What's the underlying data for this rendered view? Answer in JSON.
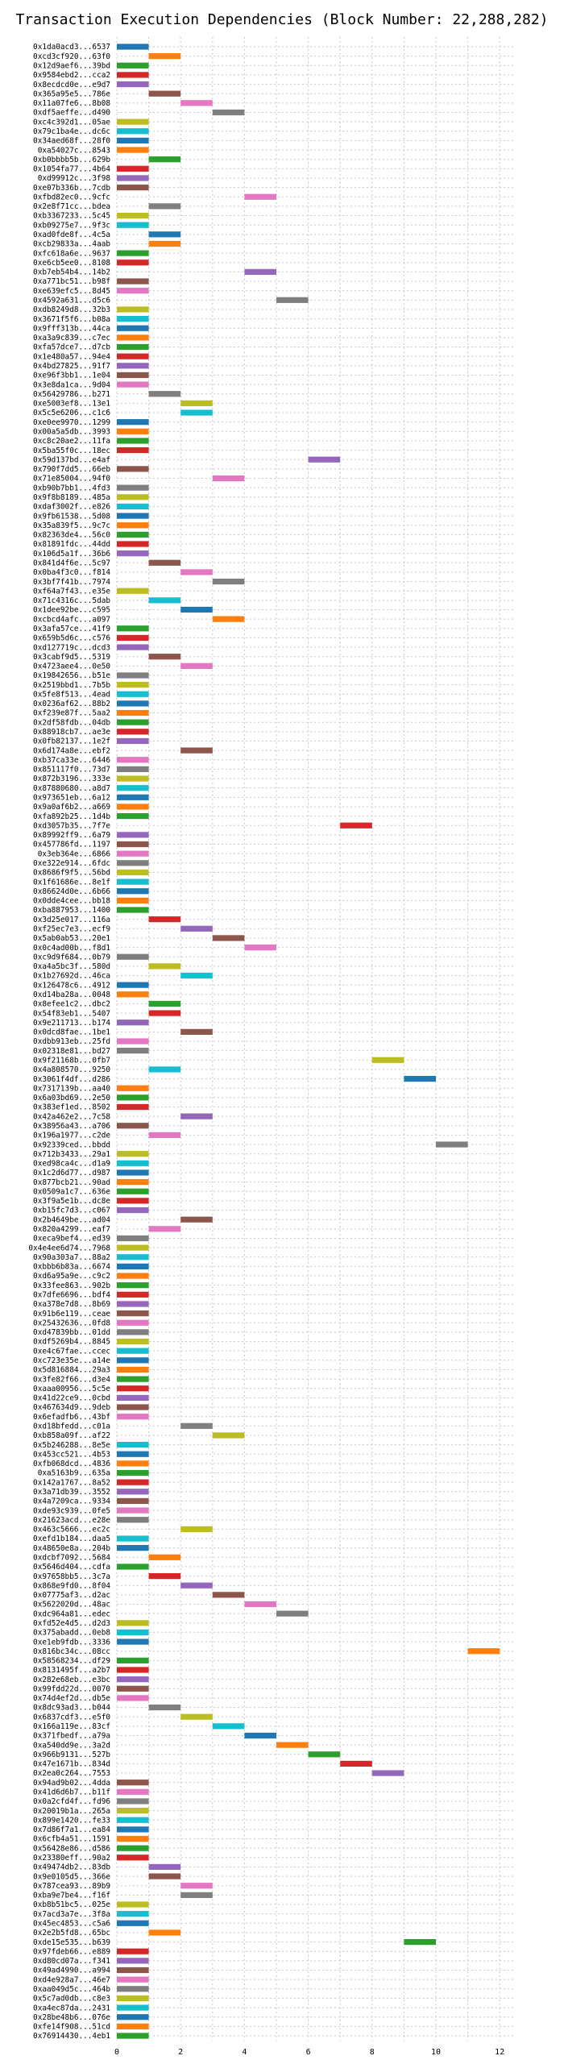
{
  "chart_data": {
    "type": "bar",
    "orientation": "horizontal-gantt",
    "title": "Transaction Execution Dependencies (Block Number: 22,288,282)",
    "xlabel": "",
    "ylabel": "",
    "xlim": [
      0,
      12.5
    ],
    "x_ticks": [
      0,
      2,
      4,
      6,
      8,
      10,
      12
    ],
    "grid": true,
    "legend": "none",
    "bar_duration": 1,
    "colors": [
      "#1f77b4",
      "#ff7f0e",
      "#2ca02c",
      "#d62728",
      "#9467bd",
      "#8c564b",
      "#e377c2",
      "#7f7f7f",
      "#bcbd22",
      "#17becf"
    ],
    "transactions": [
      {
        "label": "0x1da0acd3...6537",
        "start": 0
      },
      {
        "label": "0xcd3cf920...63f0",
        "start": 1
      },
      {
        "label": "0x12d9aef6...39bd",
        "start": 0
      },
      {
        "label": "0x9584ebd2...cca2",
        "start": 0
      },
      {
        "label": "0x8ecdcd0e...e9d7",
        "start": 0
      },
      {
        "label": "0x365a95e5...786e",
        "start": 1
      },
      {
        "label": "0x11a07fe6...8b08",
        "start": 2
      },
      {
        "label": "0xdf5aeffe...d490",
        "start": 3
      },
      {
        "label": "0xc4c392d1...05ae",
        "start": 0
      },
      {
        "label": "0x79c1ba4e...dc6c",
        "start": 0
      },
      {
        "label": "0x34aed68f...28f0",
        "start": 0
      },
      {
        "label": "0xa54027c...8543",
        "start": 0
      },
      {
        "label": "0xb0bbbb5b...629b",
        "start": 1
      },
      {
        "label": "0x1054fa77...4b64",
        "start": 0
      },
      {
        "label": "0xd99912c...3f98",
        "start": 0
      },
      {
        "label": "0xe07b336b...7cdb",
        "start": 0
      },
      {
        "label": "0xfbd82ec0...9cfc",
        "start": 4
      },
      {
        "label": "0x2e8f71cc...bdea",
        "start": 1
      },
      {
        "label": "0xb3367233...5c45",
        "start": 0
      },
      {
        "label": "0xb09275e7...9f3c",
        "start": 0
      },
      {
        "label": "0xad0fde8f...4c5a",
        "start": 1
      },
      {
        "label": "0xcb29833a...4aab",
        "start": 1
      },
      {
        "label": "0xfc618a6e...9637",
        "start": 0
      },
      {
        "label": "0xe6cb5ee0...8108",
        "start": 0
      },
      {
        "label": "0xb7eb54b4...14b2",
        "start": 4
      },
      {
        "label": "0xa771bc51...b98f",
        "start": 0
      },
      {
        "label": "0xe639efc5...8d45",
        "start": 0
      },
      {
        "label": "0x4592a631...d5c6",
        "start": 5
      },
      {
        "label": "0xdb8249d8...32b3",
        "start": 0
      },
      {
        "label": "0x3671f5f6...b08a",
        "start": 0
      },
      {
        "label": "0x9fff313b...44ca",
        "start": 0
      },
      {
        "label": "0xa3a9c839...c7ec",
        "start": 0
      },
      {
        "label": "0xfa57dce7...d7cb",
        "start": 0
      },
      {
        "label": "0x1e480a57...94e4",
        "start": 0
      },
      {
        "label": "0x4bd27825...91f7",
        "start": 0
      },
      {
        "label": "0xe96f3bb1...1e04",
        "start": 0
      },
      {
        "label": "0x3e8da1ca...9d04",
        "start": 0
      },
      {
        "label": "0x56429786...b271",
        "start": 1
      },
      {
        "label": "0xe5003ef8...13e1",
        "start": 2
      },
      {
        "label": "0x5c5e6206...c1c6",
        "start": 2
      },
      {
        "label": "0xe0ee9970...1299",
        "start": 0
      },
      {
        "label": "0x00a5a5db...3993",
        "start": 0
      },
      {
        "label": "0xc8c20ae2...11fa",
        "start": 0
      },
      {
        "label": "0x5ba55f0c...18ec",
        "start": 0
      },
      {
        "label": "0x59d137bd...e4af",
        "start": 6
      },
      {
        "label": "0x790f7dd5...66eb",
        "start": 0
      },
      {
        "label": "0x71e85004...94f0",
        "start": 3
      },
      {
        "label": "0xb90b7bb1...4fd3",
        "start": 0
      },
      {
        "label": "0x9f8b8189...485a",
        "start": 0
      },
      {
        "label": "0xdaf3002f...e826",
        "start": 0
      },
      {
        "label": "0x9fb61538...5d08",
        "start": 0
      },
      {
        "label": "0x35a839f5...9c7c",
        "start": 0
      },
      {
        "label": "0x82363de4...56c0",
        "start": 0
      },
      {
        "label": "0x81891fdc...44dd",
        "start": 0
      },
      {
        "label": "0x106d5a1f...36b6",
        "start": 0
      },
      {
        "label": "0x841d4f6e...5c97",
        "start": 1
      },
      {
        "label": "0x0ba4f3c0...f814",
        "start": 2
      },
      {
        "label": "0x3bf7f41b...7974",
        "start": 3
      },
      {
        "label": "0xf64a7f43...e35e",
        "start": 0
      },
      {
        "label": "0x71c4316c...5dab",
        "start": 1
      },
      {
        "label": "0x1dee92be...c595",
        "start": 2
      },
      {
        "label": "0xcbcd4afc...a097",
        "start": 3
      },
      {
        "label": "0x3afa57ce...41f9",
        "start": 0
      },
      {
        "label": "0x659b5d6c...c576",
        "start": 0
      },
      {
        "label": "0xd127719c...dcd3",
        "start": 0
      },
      {
        "label": "0x3cabf9d5...5319",
        "start": 1
      },
      {
        "label": "0x4723aee4...0e50",
        "start": 2
      },
      {
        "label": "0x19842656...b51e",
        "start": 0
      },
      {
        "label": "0x2519bbd1...7b5b",
        "start": 0
      },
      {
        "label": "0x5fe8f513...4ead",
        "start": 0
      },
      {
        "label": "0x0236af62...88b2",
        "start": 0
      },
      {
        "label": "0xf239e87f...5aa2",
        "start": 0
      },
      {
        "label": "0x2df58fdb...04db",
        "start": 0
      },
      {
        "label": "0x88918cb7...ae3e",
        "start": 0
      },
      {
        "label": "0x0fb82137...1e2f",
        "start": 0
      },
      {
        "label": "0x6d174a8e...ebf2",
        "start": 2
      },
      {
        "label": "0xb37ca33e...6446",
        "start": 0
      },
      {
        "label": "0x851117f0...73d7",
        "start": 0
      },
      {
        "label": "0x872b3196...333e",
        "start": 0
      },
      {
        "label": "0x87880680...a8d7",
        "start": 0
      },
      {
        "label": "0x973651eb...6a12",
        "start": 0
      },
      {
        "label": "0x9a0af6b2...a669",
        "start": 0
      },
      {
        "label": "0xfa892b25...1d4b",
        "start": 0
      },
      {
        "label": "0xd3057b35...7f7e",
        "start": 7
      },
      {
        "label": "0x89992ff9...6a79",
        "start": 0
      },
      {
        "label": "0x457786fd...1197",
        "start": 0
      },
      {
        "label": "0x3eb364e...6866",
        "start": 0
      },
      {
        "label": "0xe322e914...6fdc",
        "start": 0
      },
      {
        "label": "0x8686f9f5...56bd",
        "start": 0
      },
      {
        "label": "0x1f61686e...8e1f",
        "start": 0
      },
      {
        "label": "0x86624d0e...6b66",
        "start": 0
      },
      {
        "label": "0x0dde4cee...bb18",
        "start": 0
      },
      {
        "label": "0xba887953...1400",
        "start": 0
      },
      {
        "label": "0x3d25e017...116a",
        "start": 1
      },
      {
        "label": "0xf25ec7e3...ecf9",
        "start": 2
      },
      {
        "label": "0x5ab0ab53...20e1",
        "start": 3
      },
      {
        "label": "0x0c4ad00b...f8d1",
        "start": 4
      },
      {
        "label": "0xc9d9f684...0b79",
        "start": 0
      },
      {
        "label": "0xa4a5bc3f...580d",
        "start": 1
      },
      {
        "label": "0x1b27692d...46ca",
        "start": 2
      },
      {
        "label": "0x126478c6...4912",
        "start": 0
      },
      {
        "label": "0xd14ba28a...0048",
        "start": 0
      },
      {
        "label": "0x8efee1c2...dbc2",
        "start": 1
      },
      {
        "label": "0x54f83eb1...5407",
        "start": 1
      },
      {
        "label": "0x9e211713...b174",
        "start": 0
      },
      {
        "label": "0x0dcd8fae...1be1",
        "start": 2
      },
      {
        "label": "0xdbb913eb...25fd",
        "start": 0
      },
      {
        "label": "0x02318e81...bd27",
        "start": 0
      },
      {
        "label": "0x9f21168b...0fb7",
        "start": 8
      },
      {
        "label": "0x4a808570...9250",
        "start": 1
      },
      {
        "label": "0x3061f4df...d286",
        "start": 9
      },
      {
        "label": "0x7317139b...aa40",
        "start": 0
      },
      {
        "label": "0x6a03bd69...2e50",
        "start": 0
      },
      {
        "label": "0x383ef1ed...8502",
        "start": 0
      },
      {
        "label": "0x42a462e2...7c58",
        "start": 2
      },
      {
        "label": "0x38956a43...a706",
        "start": 0
      },
      {
        "label": "0x196a1977...c2de",
        "start": 1
      },
      {
        "label": "0x92339ced...bbdd",
        "start": 10
      },
      {
        "label": "0x712b3433...29a1",
        "start": 0
      },
      {
        "label": "0xed98ca4c...d1a9",
        "start": 0
      },
      {
        "label": "0x1c2d6d77...d987",
        "start": 0
      },
      {
        "label": "0x877bcb21...90ad",
        "start": 0
      },
      {
        "label": "0x0509a1c7...636e",
        "start": 0
      },
      {
        "label": "0x3f9a5e1b...dc8e",
        "start": 0
      },
      {
        "label": "0xb15fc7d3...c067",
        "start": 0
      },
      {
        "label": "0x2b4649be...ad04",
        "start": 2
      },
      {
        "label": "0x820a4299...eaf7",
        "start": 1
      },
      {
        "label": "0xeca9bef4...ed39",
        "start": 0
      },
      {
        "label": "0x4e4ee6d74...7968",
        "start": 0
      },
      {
        "label": "0x90a303a7...88a2",
        "start": 0
      },
      {
        "label": "0xbbb6b83a...6674",
        "start": 0
      },
      {
        "label": "0xd6a95a9e...c9c2",
        "start": 0
      },
      {
        "label": "0x33fee863...902b",
        "start": 0
      },
      {
        "label": "0x7dfe6696...bdf4",
        "start": 0
      },
      {
        "label": "0xa378e7d8...8b69",
        "start": 0
      },
      {
        "label": "0x91b6e119...ceae",
        "start": 0
      },
      {
        "label": "0x25432636...0fd8",
        "start": 0
      },
      {
        "label": "0xd47839bb...01dd",
        "start": 0
      },
      {
        "label": "0xdf5269b4...8845",
        "start": 0
      },
      {
        "label": "0xe4c67fae...ccec",
        "start": 0
      },
      {
        "label": "0xc723e35e...a14e",
        "start": 0
      },
      {
        "label": "0x5d816884...29a3",
        "start": 0
      },
      {
        "label": "0x3fe82f66...d3e4",
        "start": 0
      },
      {
        "label": "0xaaa00956...5c5e",
        "start": 0
      },
      {
        "label": "0x41d22ce9...0cbd",
        "start": 0
      },
      {
        "label": "0x467634d9...9deb",
        "start": 0
      },
      {
        "label": "0x6efadfb6...43bf",
        "start": 0
      },
      {
        "label": "0xd18bfedd...c01a",
        "start": 2
      },
      {
        "label": "0xb858a09f...af22",
        "start": 3
      },
      {
        "label": "0x5b246288...8e5e",
        "start": 0
      },
      {
        "label": "0x453cc521...4b53",
        "start": 0
      },
      {
        "label": "0xfb068dcd...4836",
        "start": 0
      },
      {
        "label": "0xa5163b9...635a",
        "start": 0
      },
      {
        "label": "0x142a1767...8a52",
        "start": 0
      },
      {
        "label": "0x3a71db39...3552",
        "start": 0
      },
      {
        "label": "0x4a7209ca...9334",
        "start": 0
      },
      {
        "label": "0xde93c939...0fe5",
        "start": 0
      },
      {
        "label": "0x21623acd...e28e",
        "start": 0
      },
      {
        "label": "0x463c5666...ec2c",
        "start": 2
      },
      {
        "label": "0xefd1b184...daa5",
        "start": 0
      },
      {
        "label": "0x48650e8a...204b",
        "start": 0
      },
      {
        "label": "0xdcbf7092...5684",
        "start": 1
      },
      {
        "label": "0x5646d404...cdfa",
        "start": 0
      },
      {
        "label": "0x97658bb5...3c7a",
        "start": 1
      },
      {
        "label": "0x868e9fd0...8f04",
        "start": 2
      },
      {
        "label": "0x07775af3...d2ac",
        "start": 3
      },
      {
        "label": "0x5622020d...48ac",
        "start": 4
      },
      {
        "label": "0xdc964a81...edec",
        "start": 5
      },
      {
        "label": "0xfd52e4d5...d2d3",
        "start": 0
      },
      {
        "label": "0x375abadd...0eb8",
        "start": 0
      },
      {
        "label": "0xe1eb9fdb...3336",
        "start": 0
      },
      {
        "label": "0x816bc34c...08cc",
        "start": 11
      },
      {
        "label": "0x58568234...df29",
        "start": 0
      },
      {
        "label": "0x8131495f...a2b7",
        "start": 0
      },
      {
        "label": "0x282e68eb...e3bc",
        "start": 0
      },
      {
        "label": "0x99fdd22d...0070",
        "start": 0
      },
      {
        "label": "0x74d4ef2d...db5e",
        "start": 0
      },
      {
        "label": "0x8dc93ad3...b044",
        "start": 1
      },
      {
        "label": "0x6837cdf3...e5f0",
        "start": 2
      },
      {
        "label": "0x166a119e...83cf",
        "start": 3
      },
      {
        "label": "0x371fbedf...a79a",
        "start": 4
      },
      {
        "label": "0xa540dd9e...3a2d",
        "start": 5
      },
      {
        "label": "0x966b9131...527b",
        "start": 6
      },
      {
        "label": "0x47e1671b...834d",
        "start": 7
      },
      {
        "label": "0x2ea0c264...7553",
        "start": 8
      },
      {
        "label": "0x94ad9b02...4dda",
        "start": 0
      },
      {
        "label": "0x41d6d6b7...b11f",
        "start": 0
      },
      {
        "label": "0x0a2cfd4f...fd96",
        "start": 0
      },
      {
        "label": "0x20019b1a...265a",
        "start": 0
      },
      {
        "label": "0x899e1420...fe33",
        "start": 0
      },
      {
        "label": "0x7d86f7a1...ea84",
        "start": 0
      },
      {
        "label": "0x6cfb4a51...1591",
        "start": 0
      },
      {
        "label": "0x56428e86...d586",
        "start": 0
      },
      {
        "label": "0x23380eff...90a2",
        "start": 0
      },
      {
        "label": "0x49474db2...83db",
        "start": 1
      },
      {
        "label": "0x9e0105d5...366e",
        "start": 1
      },
      {
        "label": "0x787cea93...89b9",
        "start": 2
      },
      {
        "label": "0xba9e7be4...f16f",
        "start": 2
      },
      {
        "label": "0xb8b51bc5...025e",
        "start": 0
      },
      {
        "label": "0x7acd3a7e...3f8a",
        "start": 0
      },
      {
        "label": "0x45ec4853...c5a6",
        "start": 0
      },
      {
        "label": "0x2e2b5fd8...65bc",
        "start": 1
      },
      {
        "label": "0xde15e535...b639",
        "start": 9
      },
      {
        "label": "0x97fdeb66...e889",
        "start": 0
      },
      {
        "label": "0xd80cd07a...f341",
        "start": 0
      },
      {
        "label": "0x49ad4990...a994",
        "start": 0
      },
      {
        "label": "0xd4e928a7...46e7",
        "start": 0
      },
      {
        "label": "0xaa049d5c...464b",
        "start": 0
      },
      {
        "label": "0x5c7ad0db...c8e3",
        "start": 0
      },
      {
        "label": "0xa4ec87da...2431",
        "start": 0
      },
      {
        "label": "0x28be48b6...076e",
        "start": 0
      },
      {
        "label": "0xfe14f908...51cd",
        "start": 0
      },
      {
        "label": "0x76914430...4eb1",
        "start": 0
      }
    ]
  }
}
